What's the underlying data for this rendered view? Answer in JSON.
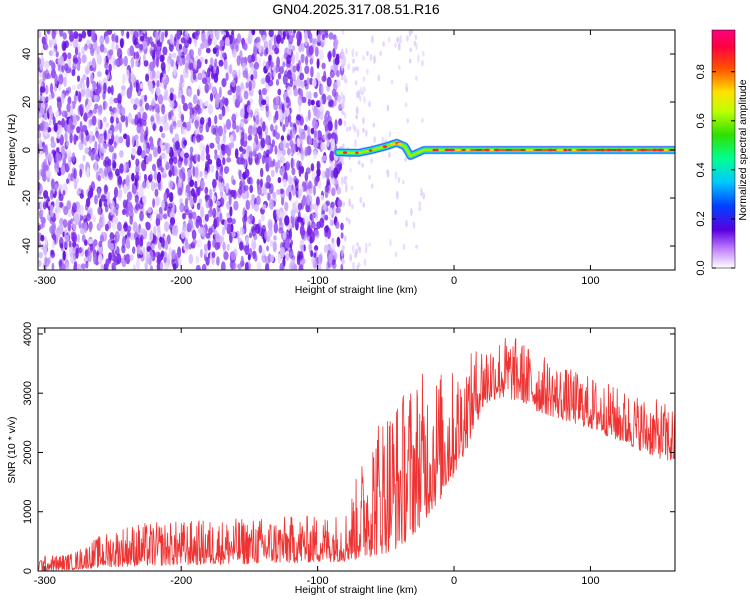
{
  "title": "GN04.2025.317.08.51.R16",
  "chart_data": [
    {
      "type": "heatmap",
      "xlabel": "Height of straight line (km)",
      "ylabel": "Frequency (Hz)",
      "xlim": [
        -305,
        162
      ],
      "ylim": [
        -50,
        50
      ],
      "xticks": [
        -300,
        -200,
        -100,
        0,
        100
      ],
      "yticks": [
        -40,
        -20,
        0,
        20,
        40
      ],
      "noise_region": {
        "x_range": [
          -305,
          -82
        ],
        "description_color": "#7a1fe6"
      },
      "ridge": {
        "x": [
          -85,
          -70,
          -60,
          -50,
          -42,
          -36,
          -32,
          -28,
          -22,
          -15,
          -5,
          5,
          40,
          80,
          120,
          162
        ],
        "freq": [
          -1,
          -1.2,
          0,
          1.5,
          3,
          1.5,
          -2.5,
          -1.5,
          0,
          0,
          0,
          0,
          0,
          0,
          0,
          0
        ]
      },
      "colorbar": {
        "label": "Normalized spectral amplitude",
        "range": [
          0.0,
          0.97
        ],
        "ticks": [
          "0.0",
          "0.2",
          "0.4",
          "0.6",
          "0.8"
        ],
        "ticks_values": [
          0.0,
          0.2,
          0.4,
          0.6,
          0.8
        ]
      }
    },
    {
      "type": "line",
      "xlabel": "Height of straight line (km)",
      "ylabel": "SNR (10 * v/v)",
      "xlim": [
        -305,
        162
      ],
      "ylim": [
        0,
        4100
      ],
      "xticks": [
        -300,
        -200,
        -100,
        0,
        100
      ],
      "yticks": [
        0,
        1000,
        2000,
        3000,
        4000
      ],
      "series": [
        {
          "color": "#ee3333",
          "envelope_x": [
            -305,
            -280,
            -260,
            -240,
            -200,
            -150,
            -100,
            -80,
            -70,
            -60,
            -50,
            -40,
            -30,
            -20,
            -10,
            0,
            10,
            20,
            30,
            40,
            50,
            60,
            80,
            100,
            120,
            140,
            162
          ],
          "envelope_low": [
            0,
            20,
            60,
            80,
            100,
            120,
            150,
            160,
            200,
            250,
            300,
            400,
            600,
            900,
            1200,
            1600,
            2100,
            2700,
            2900,
            2900,
            2850,
            2700,
            2550,
            2400,
            2200,
            2000,
            1800
          ],
          "envelope_high": [
            250,
            300,
            600,
            800,
            850,
            900,
            950,
            1000,
            1700,
            2500,
            2900,
            3000,
            3300,
            3400,
            3400,
            3400,
            3600,
            3900,
            3950,
            4000,
            3900,
            3700,
            3450,
            3300,
            3100,
            2950,
            2800
          ]
        }
      ]
    }
  ]
}
